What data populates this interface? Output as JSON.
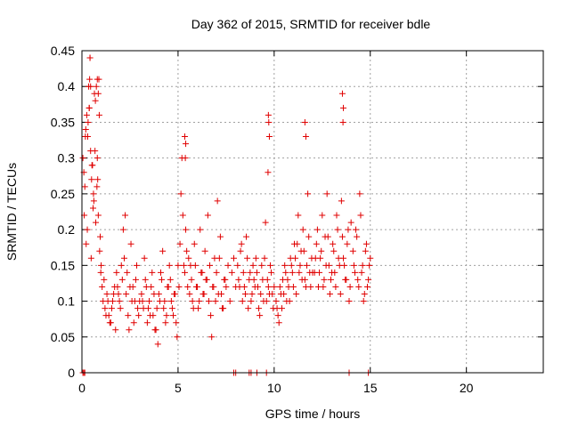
{
  "chart_data": {
    "type": "scatter",
    "title": "Day 362 of 2015, SRMTID for receiver bdle",
    "xlabel": "GPS time / hours",
    "ylabel": "SRMTID / TECUs",
    "xlim": [
      0,
      24
    ],
    "ylim": [
      0,
      0.45
    ],
    "x_ticks": [
      0,
      5,
      10,
      15,
      20
    ],
    "y_ticks": [
      0,
      0.05,
      0.1,
      0.15,
      0.2,
      0.25,
      0.3,
      0.35,
      0.4,
      0.45
    ],
    "x_tick_labels": [
      "0",
      "5",
      "10",
      "15",
      "20"
    ],
    "y_tick_labels": [
      "0",
      "0.05",
      "0.1",
      "0.15",
      "0.2",
      "0.25",
      "0.3",
      "0.35",
      "0.4",
      "0.45"
    ],
    "grid": true,
    "marker": "+",
    "color": "#e00000",
    "series": [
      {
        "name": "SRMTID",
        "x": [
          0.05,
          0.1,
          0.15,
          0.2,
          0.25,
          0.3,
          0.35,
          0.4,
          0.45,
          0.5,
          0.55,
          0.6,
          0.65,
          0.7,
          0.75,
          0.8,
          0.85,
          0.9,
          0.95,
          1.0,
          0.12,
          0.22,
          0.32,
          0.42,
          0.52,
          0.62,
          0.72,
          0.82,
          0.92,
          0.18,
          0.28,
          0.38,
          0.48,
          0.58,
          0.68,
          0.78,
          0.88,
          0.98,
          1.05,
          1.1,
          1.2,
          1.3,
          1.4,
          1.5,
          1.6,
          1.7,
          1.8,
          1.9,
          2.0,
          2.1,
          2.2,
          2.3,
          2.4,
          2.5,
          2.6,
          2.7,
          2.8,
          2.9,
          3.0,
          1.15,
          1.25,
          1.35,
          1.45,
          1.55,
          1.65,
          1.75,
          1.85,
          1.95,
          2.05,
          2.15,
          2.25,
          2.35,
          2.45,
          2.55,
          2.65,
          2.75,
          2.85,
          2.95,
          3.1,
          3.2,
          3.3,
          3.4,
          3.5,
          3.6,
          3.7,
          3.8,
          3.9,
          4.0,
          4.1,
          4.2,
          4.3,
          4.4,
          4.5,
          4.6,
          4.7,
          4.8,
          4.9,
          5.0,
          3.15,
          3.25,
          3.35,
          3.45,
          3.55,
          3.65,
          3.75,
          3.85,
          3.95,
          4.05,
          4.15,
          4.25,
          4.35,
          4.45,
          4.55,
          4.65,
          4.75,
          4.85,
          4.95,
          5.05,
          5.1,
          5.15,
          5.2,
          5.25,
          5.3,
          5.35,
          5.4,
          5.45,
          5.5,
          5.55,
          5.6,
          5.7,
          5.8,
          5.9,
          6.0,
          6.1,
          6.2,
          6.3,
          6.4,
          6.5,
          6.6,
          6.7,
          6.8,
          6.9,
          7.0,
          7.1,
          7.2,
          7.3,
          7.4,
          7.5,
          7.6,
          7.7,
          7.8,
          7.9,
          8.0,
          5.65,
          5.75,
          5.85,
          5.95,
          6.05,
          6.15,
          6.25,
          6.35,
          6.45,
          6.55,
          6.65,
          6.75,
          6.85,
          6.95,
          7.05,
          7.15,
          7.25,
          7.35,
          7.45,
          8.1,
          8.2,
          8.3,
          8.4,
          8.5,
          8.6,
          8.7,
          8.8,
          8.9,
          9.0,
          9.1,
          9.2,
          9.3,
          9.4,
          9.5,
          9.6,
          9.7,
          9.8,
          9.9,
          10.0,
          8.15,
          8.25,
          8.35,
          8.45,
          8.55,
          8.65,
          8.75,
          8.85,
          8.95,
          9.05,
          9.15,
          9.25,
          9.35,
          9.45,
          9.55,
          9.65,
          9.75,
          9.85,
          9.95,
          10.1,
          10.2,
          10.3,
          10.4,
          10.5,
          10.6,
          10.7,
          10.8,
          10.9,
          11.0,
          11.1,
          11.2,
          11.3,
          11.4,
          11.5,
          11.6,
          11.7,
          11.8,
          11.9,
          12.0,
          10.15,
          10.25,
          10.35,
          10.45,
          10.55,
          10.65,
          10.75,
          10.85,
          10.95,
          11.05,
          11.15,
          11.25,
          11.35,
          11.45,
          11.55,
          11.65,
          11.75,
          11.85,
          11.95,
          12.1,
          12.2,
          12.3,
          12.4,
          12.5,
          12.6,
          12.7,
          12.8,
          12.9,
          13.0,
          13.1,
          13.2,
          13.3,
          13.4,
          13.5,
          13.6,
          13.7,
          13.8,
          13.9,
          14.0,
          12.15,
          12.25,
          12.35,
          12.45,
          12.55,
          12.65,
          12.75,
          12.85,
          12.95,
          13.05,
          13.15,
          13.25,
          13.35,
          13.45,
          13.55,
          13.65,
          13.75,
          13.85,
          13.95,
          14.1,
          14.2,
          14.3,
          14.4,
          14.5,
          14.6,
          14.7,
          14.8,
          14.9,
          15.0,
          14.15,
          14.25,
          14.35,
          14.45,
          14.55,
          14.65,
          14.75,
          14.85,
          14.95,
          9.7,
          9.72,
          9.75,
          9.68,
          5.35,
          5.4,
          5.38,
          13.55,
          13.6,
          13.58,
          11.6,
          11.65,
          0.42,
          0.45,
          0.38,
          0.8,
          0.85,
          0.05,
          0.1,
          0.15,
          7.9,
          8.0,
          8.7,
          8.8,
          9.1,
          9.6,
          13.9,
          14.9
        ],
        "y": [
          0.3,
          0.28,
          0.26,
          0.34,
          0.36,
          0.33,
          0.4,
          0.41,
          0.31,
          0.27,
          0.29,
          0.25,
          0.39,
          0.38,
          0.4,
          0.3,
          0.22,
          0.36,
          0.19,
          0.15,
          0.22,
          0.18,
          0.35,
          0.44,
          0.29,
          0.24,
          0.21,
          0.27,
          0.17,
          0.33,
          0.2,
          0.37,
          0.16,
          0.23,
          0.31,
          0.26,
          0.41,
          0.14,
          0.12,
          0.1,
          0.09,
          0.11,
          0.08,
          0.07,
          0.1,
          0.12,
          0.14,
          0.11,
          0.09,
          0.13,
          0.16,
          0.11,
          0.08,
          0.12,
          0.1,
          0.07,
          0.13,
          0.09,
          0.1,
          0.13,
          0.08,
          0.1,
          0.07,
          0.09,
          0.11,
          0.06,
          0.12,
          0.1,
          0.15,
          0.2,
          0.22,
          0.14,
          0.06,
          0.18,
          0.12,
          0.1,
          0.15,
          0.08,
          0.11,
          0.09,
          0.13,
          0.07,
          0.1,
          0.12,
          0.08,
          0.06,
          0.09,
          0.11,
          0.14,
          0.17,
          0.1,
          0.08,
          0.12,
          0.13,
          0.09,
          0.11,
          0.07,
          0.15,
          0.1,
          0.16,
          0.12,
          0.09,
          0.08,
          0.14,
          0.11,
          0.06,
          0.04,
          0.1,
          0.13,
          0.09,
          0.07,
          0.12,
          0.15,
          0.1,
          0.08,
          0.11,
          0.05,
          0.12,
          0.18,
          0.25,
          0.3,
          0.22,
          0.15,
          0.14,
          0.2,
          0.17,
          0.12,
          0.16,
          0.11,
          0.13,
          0.09,
          0.15,
          0.12,
          0.1,
          0.14,
          0.11,
          0.17,
          0.13,
          0.1,
          0.08,
          0.12,
          0.16,
          0.14,
          0.11,
          0.19,
          0.09,
          0.13,
          0.12,
          0.15,
          0.1,
          0.14,
          0.16,
          0.12,
          0.15,
          0.1,
          0.18,
          0.12,
          0.09,
          0.2,
          0.14,
          0.11,
          0.13,
          0.22,
          0.15,
          0.05,
          0.12,
          0.1,
          0.24,
          0.16,
          0.11,
          0.09,
          0.13,
          0.15,
          0.12,
          0.18,
          0.14,
          0.11,
          0.16,
          0.13,
          0.1,
          0.15,
          0.12,
          0.14,
          0.09,
          0.11,
          0.13,
          0.16,
          0.1,
          0.12,
          0.15,
          0.11,
          0.12,
          0.13,
          0.17,
          0.1,
          0.12,
          0.19,
          0.09,
          0.14,
          0.11,
          0.13,
          0.16,
          0.12,
          0.08,
          0.15,
          0.1,
          0.21,
          0.13,
          0.11,
          0.14,
          0.09,
          0.1,
          0.08,
          0.12,
          0.09,
          0.11,
          0.14,
          0.13,
          0.1,
          0.15,
          0.12,
          0.16,
          0.18,
          0.14,
          0.17,
          0.2,
          0.13,
          0.15,
          0.19,
          0.12,
          0.14,
          0.09,
          0.07,
          0.11,
          0.13,
          0.15,
          0.1,
          0.12,
          0.16,
          0.14,
          0.18,
          0.11,
          0.22,
          0.15,
          0.13,
          0.17,
          0.12,
          0.25,
          0.14,
          0.16,
          0.14,
          0.18,
          0.12,
          0.16,
          0.22,
          0.13,
          0.15,
          0.19,
          0.11,
          0.14,
          0.17,
          0.12,
          0.2,
          0.15,
          0.24,
          0.16,
          0.13,
          0.18,
          0.1,
          0.21,
          0.16,
          0.2,
          0.14,
          0.17,
          0.12,
          0.19,
          0.25,
          0.15,
          0.13,
          0.18,
          0.14,
          0.22,
          0.16,
          0.11,
          0.19,
          0.15,
          0.13,
          0.2,
          0.12,
          0.17,
          0.14,
          0.19,
          0.12,
          0.22,
          0.15,
          0.11,
          0.18,
          0.13,
          0.16,
          0.15,
          0.2,
          0.13,
          0.25,
          0.14,
          0.1,
          0.17,
          0.12,
          0.15,
          0.36,
          0.35,
          0.33,
          0.28,
          0.33,
          0.32,
          0.3,
          0.39,
          0.37,
          0.35,
          0.35,
          0.33,
          0.44,
          0.4,
          0.37,
          0.41,
          0.39,
          0,
          0,
          0,
          0,
          0,
          0,
          0,
          0,
          0,
          0,
          0
        ]
      }
    ]
  }
}
